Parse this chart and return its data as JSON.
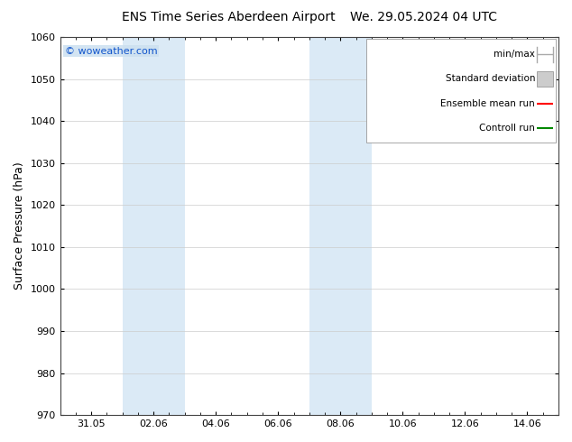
{
  "title_left": "ENS Time Series Aberdeen Airport",
  "title_right": "We. 29.05.2024 04 UTC",
  "ylabel": "Surface Pressure (hPa)",
  "ylim": [
    970,
    1060
  ],
  "yticks": [
    970,
    980,
    990,
    1000,
    1010,
    1020,
    1030,
    1040,
    1050,
    1060
  ],
  "xlim": [
    0,
    16
  ],
  "xtick_labels": [
    "31.05",
    "02.06",
    "04.06",
    "06.06",
    "08.06",
    "10.06",
    "12.06",
    "14.06"
  ],
  "xtick_positions": [
    1.0,
    3.0,
    5.0,
    7.0,
    9.0,
    11.0,
    13.0,
    15.0
  ],
  "shaded_regions": [
    {
      "xmin": 2.0,
      "xmax": 4.0,
      "color": "#dbeaf6"
    },
    {
      "xmin": 8.0,
      "xmax": 10.0,
      "color": "#dbeaf6"
    }
  ],
  "watermark": "© woweather.com",
  "watermark_color": "#1155cc",
  "legend_items": [
    {
      "label": "min/max",
      "color": "#aaaaaa",
      "style": "minmax"
    },
    {
      "label": "Standard deviation",
      "color": "#cccccc",
      "style": "box"
    },
    {
      "label": "Ensemble mean run",
      "color": "#ff0000",
      "style": "line"
    },
    {
      "label": "Controll run",
      "color": "#008800",
      "style": "line"
    }
  ],
  "bg_color": "#ffffff",
  "grid_color": "#cccccc",
  "title_fontsize": 10,
  "ylabel_fontsize": 9,
  "tick_fontsize": 8,
  "legend_fontsize": 7.5
}
